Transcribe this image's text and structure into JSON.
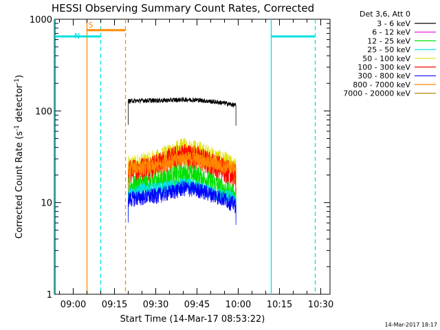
{
  "chart_data": {
    "type": "line",
    "title": "HESSI Observing Summary Count Rates, Corrected",
    "xlabel": "Start Time (14-Mar-17 08:53:22)",
    "ylabel": "Corrected Count Rate (s",
    "ylabel_sup1": "-1",
    "ylabel_mid": " detector",
    "ylabel_sup2": "-1",
    "ylabel_end": ")",
    "yscale": "log",
    "ylim": [
      1,
      1000
    ],
    "xlim": [
      "08:53:22",
      "10:33:22"
    ],
    "x_ticks": [
      "09:00",
      "09:15",
      "09:30",
      "09:45",
      "10:00",
      "10:15",
      "10:30"
    ],
    "y_ticks": [
      "1",
      "10",
      "100",
      "1000"
    ],
    "grid": false,
    "legend": {
      "position": "top-right",
      "title": "Det 3,6, Att 0",
      "entries": [
        {
          "label": "3 - 6 keV",
          "color": "#000000"
        },
        {
          "label": "6 - 12 keV",
          "color": "#e000e0"
        },
        {
          "label": "12 - 25 keV",
          "color": "#00e000"
        },
        {
          "label": "25 - 50 keV",
          "color": "#00e0e0"
        },
        {
          "label": "50 - 100 keV",
          "color": "#e0e000"
        },
        {
          "label": "100 - 300 keV",
          "color": "#ff0000"
        },
        {
          "label": "300 - 800 keV",
          "color": "#0000ff"
        },
        {
          "label": "800 - 7000 keV",
          "color": "#ff8800"
        },
        {
          "label": "7000 - 20000 keV",
          "color": "#b8860b"
        }
      ]
    },
    "series": [
      {
        "name": "3 - 6 keV",
        "color": "#000000",
        "x": [
          "09:20",
          "09:25",
          "09:30",
          "09:35",
          "09:40",
          "09:45",
          "09:50",
          "09:55",
          "09:59"
        ],
        "y": [
          128,
          130,
          130,
          131,
          133,
          132,
          127,
          122,
          115
        ]
      },
      {
        "name": "12 - 25 keV",
        "color": "#00e000",
        "x": [
          "09:20",
          "09:25",
          "09:30",
          "09:35",
          "09:40",
          "09:45",
          "09:50",
          "09:55",
          "09:59"
        ],
        "y": [
          15,
          16,
          17,
          19,
          21,
          20,
          17,
          14,
          12
        ]
      },
      {
        "name": "25 - 50 keV",
        "color": "#00e0e0",
        "x": [
          "09:20",
          "09:25",
          "09:30",
          "09:35",
          "09:40",
          "09:45",
          "09:50",
          "09:55",
          "09:59"
        ],
        "y": [
          13,
          14,
          14,
          15,
          16,
          15,
          13,
          12,
          11
        ]
      },
      {
        "name": "50 - 100 keV",
        "color": "#e0e000",
        "x": [
          "09:20",
          "09:25",
          "09:30",
          "09:35",
          "09:40",
          "09:45",
          "09:50",
          "09:55",
          "09:59"
        ],
        "y": [
          24,
          26,
          28,
          33,
          38,
          36,
          31,
          27,
          23
        ]
      },
      {
        "name": "100 - 300 keV",
        "color": "#ff0000",
        "x": [
          "09:20",
          "09:25",
          "09:30",
          "09:35",
          "09:40",
          "09:45",
          "09:50",
          "09:55",
          "09:59"
        ],
        "y": [
          22,
          24,
          26,
          30,
          34,
          32,
          27,
          24,
          20
        ]
      },
      {
        "name": "300 - 800 keV",
        "color": "#0000ff",
        "x": [
          "09:20",
          "09:25",
          "09:30",
          "09:35",
          "09:40",
          "09:45",
          "09:50",
          "09:55",
          "09:59"
        ],
        "y": [
          11,
          11.5,
          12,
          13,
          14.5,
          14,
          12.5,
          11,
          9.5
        ]
      },
      {
        "name": "800 - 7000 keV",
        "color": "#ff8800",
        "x": [
          "09:20",
          "09:25",
          "09:30",
          "09:35",
          "09:40",
          "09:45",
          "09:50",
          "09:55",
          "09:59"
        ],
        "y": [
          24,
          24,
          25,
          28,
          31,
          30,
          27,
          25,
          24
        ]
      }
    ],
    "flags": [
      {
        "label": "S",
        "color": "#ff8800",
        "start": "09:05",
        "end": "09:19",
        "level": 760
      },
      {
        "label": "N",
        "color": "#00e0e0",
        "start": "08:53",
        "end": "09:10",
        "level": 650
      },
      {
        "label": "",
        "color": "#00e0e0",
        "start": "10:12",
        "end": "10:28",
        "level": 650
      }
    ],
    "vlines": [
      {
        "x": "09:05",
        "color": "#ff8800",
        "style": "solid"
      },
      {
        "x": "09:19",
        "color": "#ff8800",
        "style": "dashed"
      },
      {
        "x": "08:53",
        "color": "#00e0e0",
        "style": "solid"
      },
      {
        "x": "09:10",
        "color": "#00e0e0",
        "style": "dashed"
      },
      {
        "x": "10:12",
        "color": "#00e0e0",
        "style": "solid"
      },
      {
        "x": "10:28",
        "color": "#00e0e0",
        "style": "dashed"
      }
    ]
  },
  "footer": {
    "timestamp": "14-Mar-2017 18:17"
  }
}
